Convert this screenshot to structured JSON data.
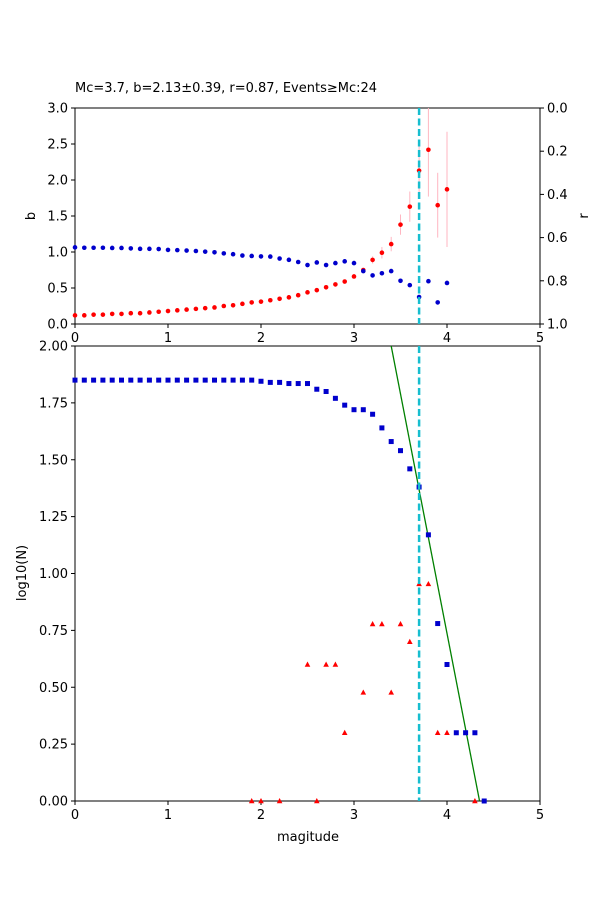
{
  "chart_data": [
    {
      "id": "top",
      "type": "scatter",
      "title": "Mc=3.7, b=2.13±0.39, r=0.87, Events≥Mc:24",
      "xlabel": "",
      "ylabel": "b",
      "y2label": "r",
      "xlim": [
        0,
        5
      ],
      "ylim": [
        0,
        3.0
      ],
      "y2lim": [
        1.0,
        0.0
      ],
      "x_ticks": [
        "0",
        "1",
        "2",
        "3",
        "4",
        "5"
      ],
      "y_ticks": [
        "0.0",
        "0.5",
        "1.0",
        "1.5",
        "2.0",
        "2.5",
        "3.0"
      ],
      "y2_ticks": [
        "0.0",
        "0.2",
        "0.4",
        "0.6",
        "0.8",
        "1.0"
      ],
      "mc_line": 3.7,
      "colors": {
        "b": "#ff0000",
        "r": "#0000cc",
        "error": "#ffb6c1",
        "mc": "#17becf"
      },
      "series": [
        {
          "name": "b",
          "axis": "left",
          "x": [
            0.0,
            0.1,
            0.2,
            0.3,
            0.4,
            0.5,
            0.6,
            0.7,
            0.8,
            0.9,
            1.0,
            1.1,
            1.2,
            1.3,
            1.4,
            1.5,
            1.6,
            1.7,
            1.8,
            1.9,
            2.0,
            2.1,
            2.2,
            2.3,
            2.4,
            2.5,
            2.6,
            2.7,
            2.8,
            2.9,
            3.0,
            3.1,
            3.2,
            3.3,
            3.4,
            3.5,
            3.6,
            3.7,
            3.8,
            3.9,
            4.0
          ],
          "y": [
            0.12,
            0.12,
            0.13,
            0.13,
            0.14,
            0.14,
            0.15,
            0.15,
            0.16,
            0.17,
            0.18,
            0.19,
            0.2,
            0.21,
            0.22,
            0.23,
            0.25,
            0.26,
            0.28,
            0.3,
            0.31,
            0.33,
            0.35,
            0.37,
            0.4,
            0.44,
            0.47,
            0.51,
            0.55,
            0.59,
            0.66,
            0.75,
            0.89,
            0.99,
            1.11,
            1.38,
            1.63,
            2.13,
            2.42,
            1.65,
            1.87
          ],
          "err": [
            0,
            0,
            0,
            0,
            0,
            0,
            0,
            0,
            0,
            0,
            0,
            0,
            0,
            0,
            0,
            0,
            0,
            0,
            0,
            0,
            0,
            0,
            0,
            0,
            0,
            0,
            0,
            0,
            0,
            0,
            0,
            0,
            0.05,
            0.08,
            0.1,
            0.14,
            0.21,
            0.39,
            0.65,
            0.45,
            0.8
          ]
        },
        {
          "name": "r",
          "axis": "right",
          "x": [
            0.0,
            0.1,
            0.2,
            0.3,
            0.4,
            0.5,
            0.6,
            0.7,
            0.8,
            0.9,
            1.0,
            1.1,
            1.2,
            1.3,
            1.4,
            1.5,
            1.6,
            1.7,
            1.8,
            1.9,
            2.0,
            2.1,
            2.2,
            2.3,
            2.4,
            2.5,
            2.6,
            2.7,
            2.8,
            2.9,
            3.0,
            3.1,
            3.2,
            3.3,
            3.4,
            3.5,
            3.6,
            3.7,
            3.8,
            3.9,
            4.0
          ],
          "y": [
            0.645,
            0.647,
            0.647,
            0.647,
            0.648,
            0.648,
            0.65,
            0.652,
            0.652,
            0.653,
            0.657,
            0.658,
            0.66,
            0.662,
            0.665,
            0.668,
            0.673,
            0.677,
            0.683,
            0.685,
            0.687,
            0.688,
            0.697,
            0.703,
            0.713,
            0.727,
            0.715,
            0.727,
            0.718,
            0.71,
            0.718,
            0.755,
            0.775,
            0.765,
            0.755,
            0.8,
            0.82,
            0.875,
            0.802,
            0.9,
            0.81
          ]
        }
      ]
    },
    {
      "id": "bottom",
      "type": "scatter",
      "title": "",
      "xlabel": "magitude",
      "ylabel": "log10(N)",
      "xlim": [
        0,
        5
      ],
      "ylim": [
        0,
        2.0
      ],
      "x_ticks": [
        "0",
        "1",
        "2",
        "3",
        "4",
        "5"
      ],
      "y_ticks": [
        "0.00",
        "0.25",
        "0.50",
        "0.75",
        "1.00",
        "1.25",
        "1.50",
        "1.75",
        "2.00"
      ],
      "mc_line": 3.7,
      "colors": {
        "cumulative": "#0000cc",
        "noncumulative": "#ff0000",
        "fit": "#008000",
        "mc": "#17becf"
      },
      "fit_line": {
        "x": [
          3.4,
          4.35
        ],
        "y": [
          2.0,
          0.0
        ]
      },
      "series": [
        {
          "name": "cumulative",
          "marker": "square",
          "x": [
            0.0,
            0.1,
            0.2,
            0.3,
            0.4,
            0.5,
            0.6,
            0.7,
            0.8,
            0.9,
            1.0,
            1.1,
            1.2,
            1.3,
            1.4,
            1.5,
            1.6,
            1.7,
            1.8,
            1.9,
            2.0,
            2.1,
            2.2,
            2.3,
            2.4,
            2.5,
            2.6,
            2.7,
            2.8,
            2.9,
            3.0,
            3.1,
            3.2,
            3.3,
            3.4,
            3.5,
            3.6,
            3.7,
            3.8,
            3.9,
            4.0,
            4.1,
            4.2,
            4.3,
            4.4
          ],
          "y": [
            1.85,
            1.85,
            1.85,
            1.85,
            1.85,
            1.85,
            1.85,
            1.85,
            1.85,
            1.85,
            1.85,
            1.85,
            1.85,
            1.85,
            1.85,
            1.85,
            1.85,
            1.85,
            1.85,
            1.85,
            1.845,
            1.84,
            1.84,
            1.835,
            1.835,
            1.835,
            1.81,
            1.8,
            1.77,
            1.74,
            1.72,
            1.72,
            1.7,
            1.64,
            1.58,
            1.54,
            1.46,
            1.38,
            1.17,
            0.78,
            0.6,
            0.3,
            0.3,
            0.3,
            0.0
          ]
        },
        {
          "name": "noncumulative",
          "marker": "triangle",
          "x": [
            1.9,
            2.0,
            2.2,
            2.5,
            2.6,
            2.7,
            2.8,
            2.9,
            3.1,
            3.2,
            3.3,
            3.4,
            3.5,
            3.6,
            3.7,
            3.8,
            3.9,
            4.0,
            4.3
          ],
          "y": [
            0.0,
            0.0,
            0.0,
            0.6,
            0.0,
            0.6,
            0.6,
            0.3,
            0.477,
            0.778,
            0.778,
            0.477,
            0.778,
            0.7,
            0.954,
            0.954,
            0.3,
            0.3,
            0.0
          ]
        }
      ]
    }
  ]
}
